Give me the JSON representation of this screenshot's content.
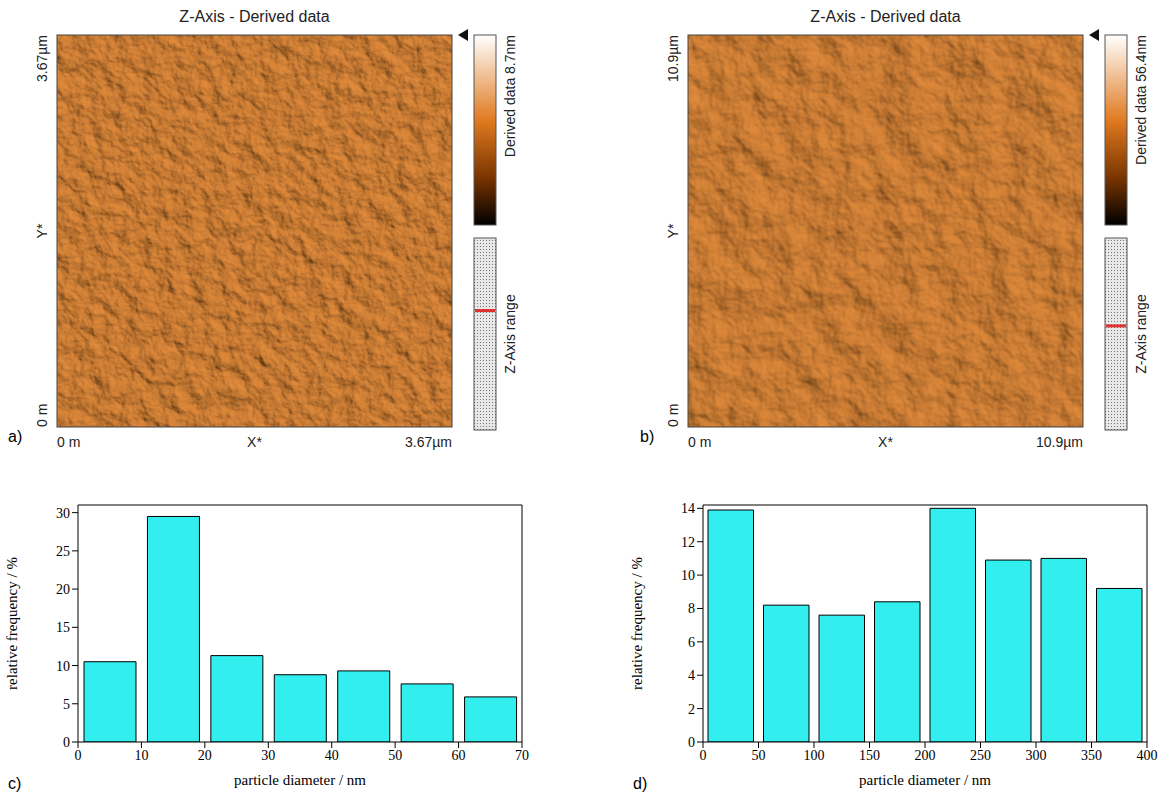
{
  "panels": [
    {
      "label": "a)",
      "title": "Z-Axis - Derived data",
      "x_label": "X*",
      "y_label": "Y*",
      "x_start": "0 m",
      "x_end": "3.67µm",
      "y_start": "0 m",
      "y_end": "3.67µm",
      "colorbar_label": "Derived data 8.7nm",
      "range_label": "Z-Axis range"
    },
    {
      "label": "b)",
      "title": "Z-Axis - Derived data",
      "x_label": "X*",
      "y_label": "Y*",
      "x_start": "0 m",
      "x_end": "10.9µm",
      "y_start": "0 m",
      "y_end": "10.9µm",
      "colorbar_label": "Derived data 56.4nm",
      "range_label": "Z-Axis range"
    }
  ],
  "chart_data": [
    {
      "label": "c)",
      "type": "histogram",
      "bins": [
        0,
        10,
        20,
        30,
        40,
        50,
        60,
        70
      ],
      "values": [
        10.5,
        29.5,
        11.3,
        8.8,
        9.3,
        7.6,
        5.9
      ],
      "color": "#33eeee",
      "xlabel": "particle diameter / nm",
      "ylabel": "relative frequency / %",
      "xlim": [
        0,
        70
      ],
      "xticks": [
        0,
        10,
        20,
        30,
        40,
        50,
        60,
        70
      ],
      "ylim": [
        0,
        31
      ],
      "yticks": [
        0,
        5,
        10,
        15,
        20,
        25,
        30
      ]
    },
    {
      "label": "d)",
      "type": "histogram",
      "bins": [
        0,
        50,
        100,
        150,
        200,
        250,
        300,
        350,
        400
      ],
      "values": [
        13.9,
        8.2,
        7.6,
        8.4,
        14.0,
        10.9,
        11.0,
        9.2
      ],
      "color": "#33eeee",
      "xlabel": "particle diameter / nm",
      "ylabel": "relative frequency / %",
      "xlim": [
        0,
        400
      ],
      "xticks": [
        0,
        50,
        100,
        150,
        200,
        250,
        300,
        350,
        400
      ],
      "ylim": [
        0,
        14.2
      ],
      "yticks": [
        0,
        2,
        4,
        6,
        8,
        10,
        12,
        14
      ]
    }
  ]
}
